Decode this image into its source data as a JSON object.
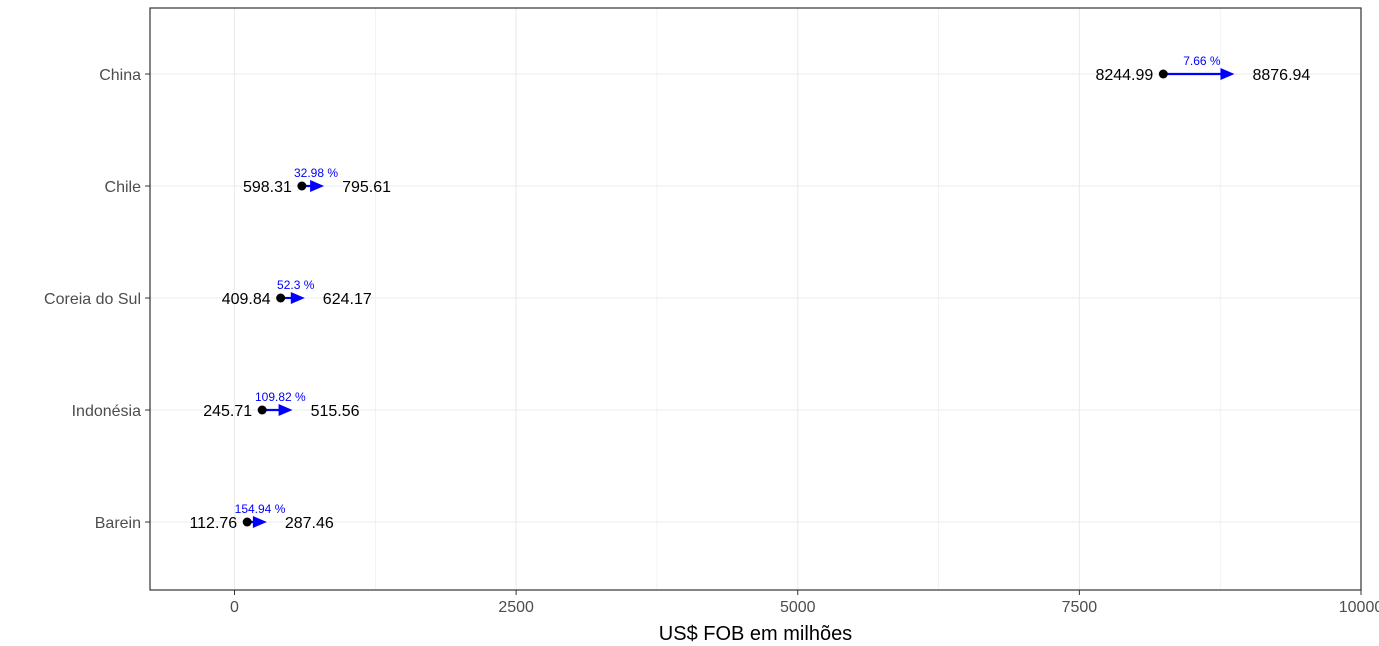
{
  "chart_data": {
    "type": "dumbbell-arrow",
    "title": "",
    "xlabel": "US$ FOB em milhões",
    "ylabel": "",
    "xlim": [
      -750,
      10000
    ],
    "x_ticks": [
      0,
      2500,
      5000,
      7500,
      10000
    ],
    "x_tick_labels": [
      "0",
      "2500",
      "5000",
      "7500",
      "10000"
    ],
    "grid": true,
    "legend": "none",
    "categories": [
      "China",
      "Chile",
      "Coreia do Sul",
      "Indonésia",
      "Barein"
    ],
    "start_values": [
      8244.99,
      598.31,
      409.84,
      245.71,
      112.76
    ],
    "end_values": [
      8876.94,
      795.61,
      624.17,
      515.56,
      287.46
    ],
    "start_labels": [
      "8244.99",
      "598.31",
      "409.84",
      "245.71",
      "112.76"
    ],
    "end_labels": [
      "8876.94",
      "795.61",
      "624.17",
      "515.56",
      "287.46"
    ],
    "change_labels": [
      "7.66 %",
      "32.98 %",
      "52.3 %",
      "109.82 %",
      "154.94 %"
    ],
    "colors": {
      "arrow": "#0000ff",
      "point": "#000000",
      "grid": "#ebebeb",
      "panel_border": "#333333"
    }
  }
}
